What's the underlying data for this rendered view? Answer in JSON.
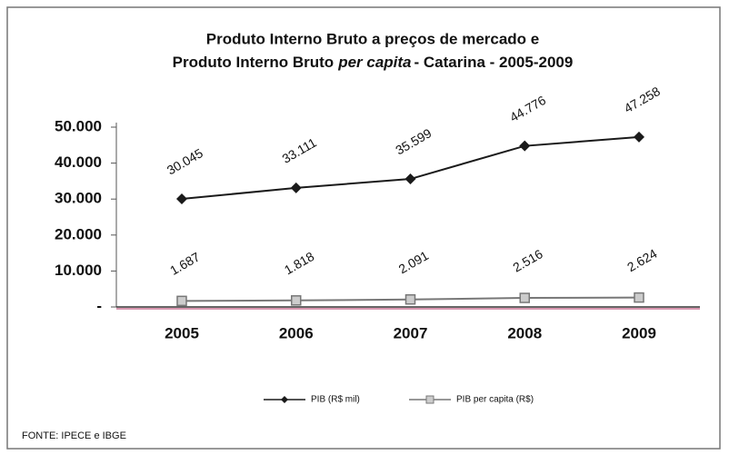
{
  "chart_data": {
    "type": "line",
    "title": {
      "line1": "Produto Interno Bruto a preços de mercado  e",
      "line2": [
        "Produto Interno Bruto",
        "per capita",
        "- Catarina - 2005-2009"
      ]
    },
    "categories": [
      "2005",
      "2006",
      "2007",
      "2008",
      "2009"
    ],
    "series": [
      {
        "name": "PIB (R$ mil)",
        "color": "#1a1a1a",
        "marker": "diamond",
        "values": [
          30045,
          33111,
          35599,
          44776,
          47258
        ],
        "value_labels": [
          "30.045",
          "33.111",
          "35.599",
          "44.776",
          "47.258"
        ]
      },
      {
        "name": "PIB per capita (R$)",
        "color": "#777777",
        "marker": "square",
        "values": [
          1687,
          1818,
          2091,
          2516,
          2624
        ],
        "value_labels": [
          "1.687",
          "1.818",
          "2.091",
          "2.516",
          "2.624"
        ]
      }
    ],
    "ylim": [
      0,
      50000
    ],
    "yticks": [
      {
        "value": 0,
        "label": "-"
      },
      {
        "value": 10000,
        "label": "10.000"
      },
      {
        "value": 20000,
        "label": "20.000"
      },
      {
        "value": 30000,
        "label": "30.000"
      },
      {
        "value": 40000,
        "label": "40.000"
      },
      {
        "value": 50000,
        "label": "50.000"
      }
    ],
    "legend": "bottom",
    "source": "FONTE: IPECE e IBGE"
  }
}
